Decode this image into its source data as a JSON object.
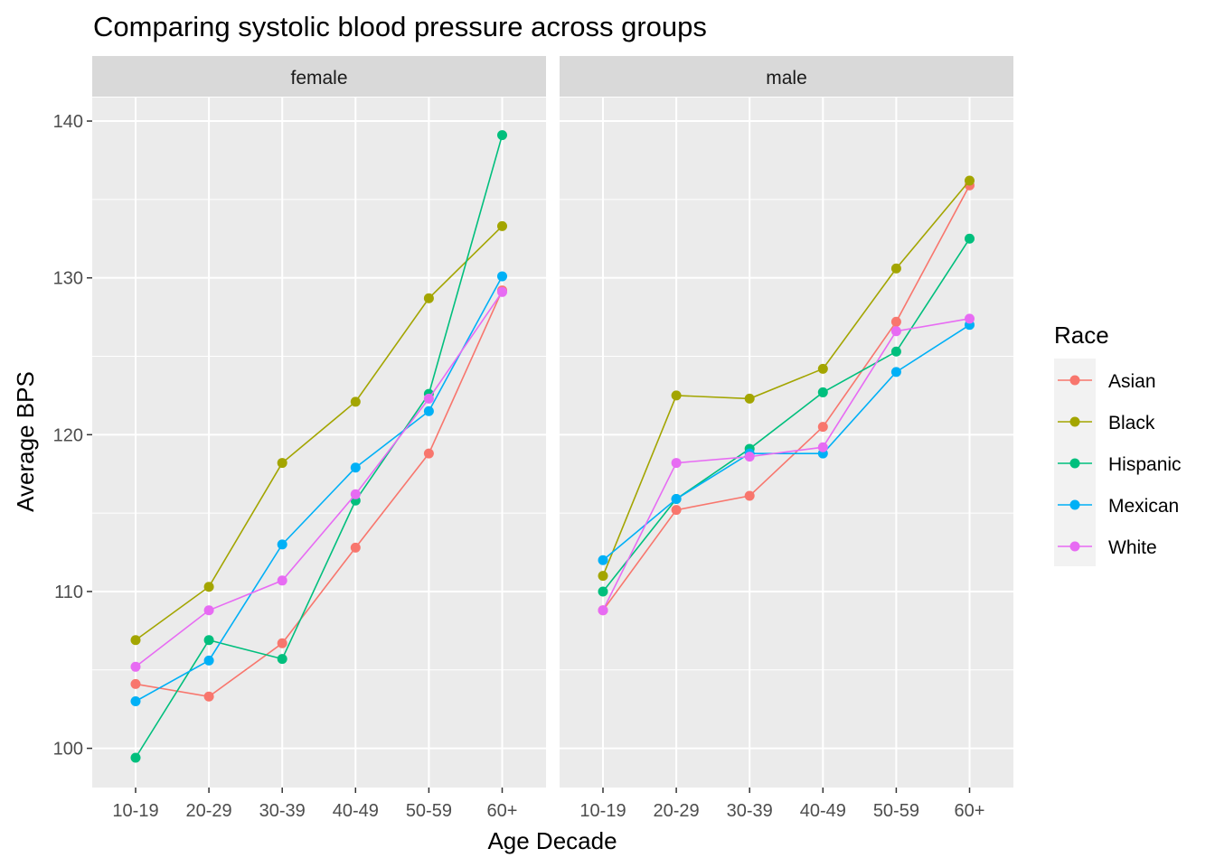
{
  "chart_data": {
    "type": "line",
    "title": "Comparing systolic blood pressure across groups",
    "xlabel": "Age Decade",
    "ylabel": "Average BPS",
    "ylim": [
      97.5,
      141.5
    ],
    "yticks": [
      100,
      110,
      120,
      130,
      140
    ],
    "categories": [
      "10-19",
      "20-29",
      "30-39",
      "40-49",
      "50-59",
      "60+"
    ],
    "grid": true,
    "legend": {
      "title": "Race",
      "position": "right",
      "entries": [
        "Asian",
        "Black",
        "Hispanic",
        "Mexican",
        "White"
      ]
    },
    "colors": {
      "Asian": "#F8766D",
      "Black": "#A3A500",
      "Hispanic": "#00BF7D",
      "Mexican": "#00B0F6",
      "White": "#E76BF3"
    },
    "panels": [
      {
        "label": "female",
        "series": [
          {
            "name": "Asian",
            "values": [
              104.1,
              103.3,
              106.7,
              112.8,
              118.8,
              129.2
            ]
          },
          {
            "name": "Black",
            "values": [
              106.9,
              110.3,
              118.2,
              122.1,
              128.7,
              133.3
            ]
          },
          {
            "name": "Hispanic",
            "values": [
              99.4,
              106.9,
              105.7,
              115.8,
              122.6,
              139.1
            ]
          },
          {
            "name": "Mexican",
            "values": [
              103.0,
              105.6,
              113.0,
              117.9,
              121.5,
              130.1
            ]
          },
          {
            "name": "White",
            "values": [
              105.2,
              108.8,
              110.7,
              116.2,
              122.3,
              129.1
            ]
          }
        ]
      },
      {
        "label": "male",
        "series": [
          {
            "name": "Asian",
            "values": [
              108.8,
              115.2,
              116.1,
              120.5,
              127.2,
              135.9
            ]
          },
          {
            "name": "Black",
            "values": [
              111.0,
              122.5,
              122.3,
              124.2,
              130.6,
              136.2
            ]
          },
          {
            "name": "Hispanic",
            "values": [
              110.0,
              115.9,
              119.1,
              122.7,
              125.3,
              132.5
            ]
          },
          {
            "name": "Mexican",
            "values": [
              112.0,
              115.9,
              118.8,
              118.8,
              124.0,
              127.0
            ]
          },
          {
            "name": "White",
            "values": [
              108.8,
              118.2,
              118.6,
              119.2,
              126.6,
              127.4
            ]
          }
        ]
      }
    ]
  }
}
